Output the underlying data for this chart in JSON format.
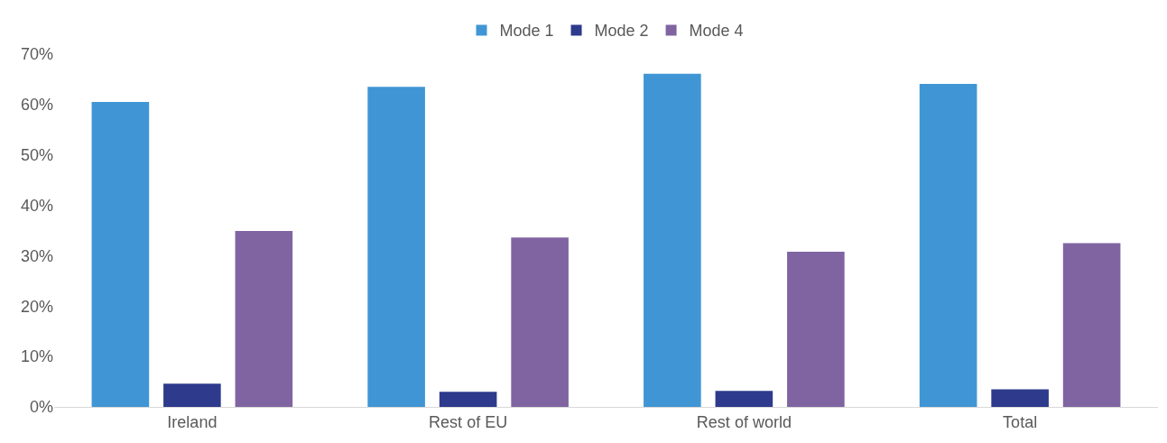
{
  "chart_data": {
    "type": "bar",
    "categories": [
      "Ireland",
      "Rest of EU",
      "Rest of world",
      "Total"
    ],
    "series": [
      {
        "name": "Mode 1",
        "color": "#4096d4",
        "values": [
          60.5,
          63.5,
          66.1,
          64.1
        ]
      },
      {
        "name": "Mode 2",
        "color": "#2e3a8c",
        "values": [
          4.6,
          3.0,
          3.2,
          3.5
        ]
      },
      {
        "name": "Mode 4",
        "color": "#8064a2",
        "values": [
          34.9,
          33.6,
          30.8,
          32.5
        ]
      }
    ],
    "ylim": [
      0,
      70
    ],
    "yticks": [
      {
        "value": 0,
        "label": "0%"
      },
      {
        "value": 10,
        "label": "10%"
      },
      {
        "value": 20,
        "label": "20%"
      },
      {
        "value": 30,
        "label": "30%"
      },
      {
        "value": 40,
        "label": "40%"
      },
      {
        "value": 50,
        "label": "50%"
      },
      {
        "value": 60,
        "label": "60%"
      },
      {
        "value": 70,
        "label": "70%"
      }
    ],
    "grid": false,
    "legend": "top"
  }
}
